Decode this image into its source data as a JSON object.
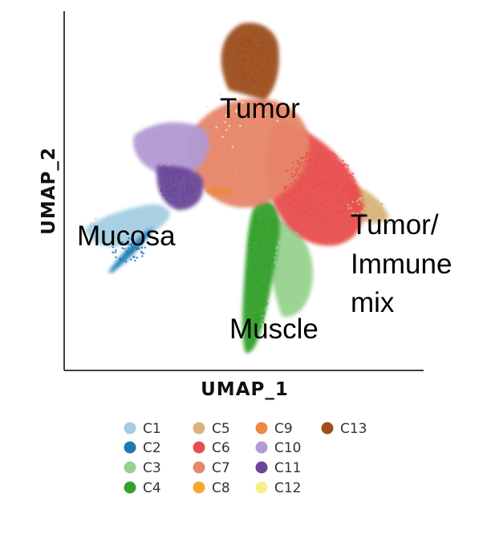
{
  "chart_data": {
    "type": "scatter",
    "xlabel": "UMAP_1",
    "ylabel": "UMAP_2",
    "grid": false,
    "legend_position": "bottom",
    "region_labels": [
      {
        "text": "Tumor",
        "cluster": "C7"
      },
      {
        "text": "Mucosa",
        "cluster": "C1"
      },
      {
        "text": "Tumor/",
        "cluster": "C6"
      },
      {
        "text": "Immune",
        "cluster": "C6"
      },
      {
        "text": "mix",
        "cluster": "C6"
      },
      {
        "text": "Muscle",
        "cluster": "C4"
      }
    ],
    "series": [
      {
        "name": "C1",
        "color": "#a6cee3"
      },
      {
        "name": "C2",
        "color": "#1f78b4"
      },
      {
        "name": "C3",
        "color": "#98d28f"
      },
      {
        "name": "C4",
        "color": "#33a02c"
      },
      {
        "name": "C5",
        "color": "#d9b47c"
      },
      {
        "name": "C6",
        "color": "#e84e4e"
      },
      {
        "name": "C7",
        "color": "#e6866a"
      },
      {
        "name": "C8",
        "color": "#f6a832"
      },
      {
        "name": "C9",
        "color": "#ee8a3e"
      },
      {
        "name": "C10",
        "color": "#b39ad3"
      },
      {
        "name": "C11",
        "color": "#6a4699"
      },
      {
        "name": "C12",
        "color": "#f5ef8c"
      },
      {
        "name": "C13",
        "color": "#9c4e1b"
      }
    ]
  }
}
